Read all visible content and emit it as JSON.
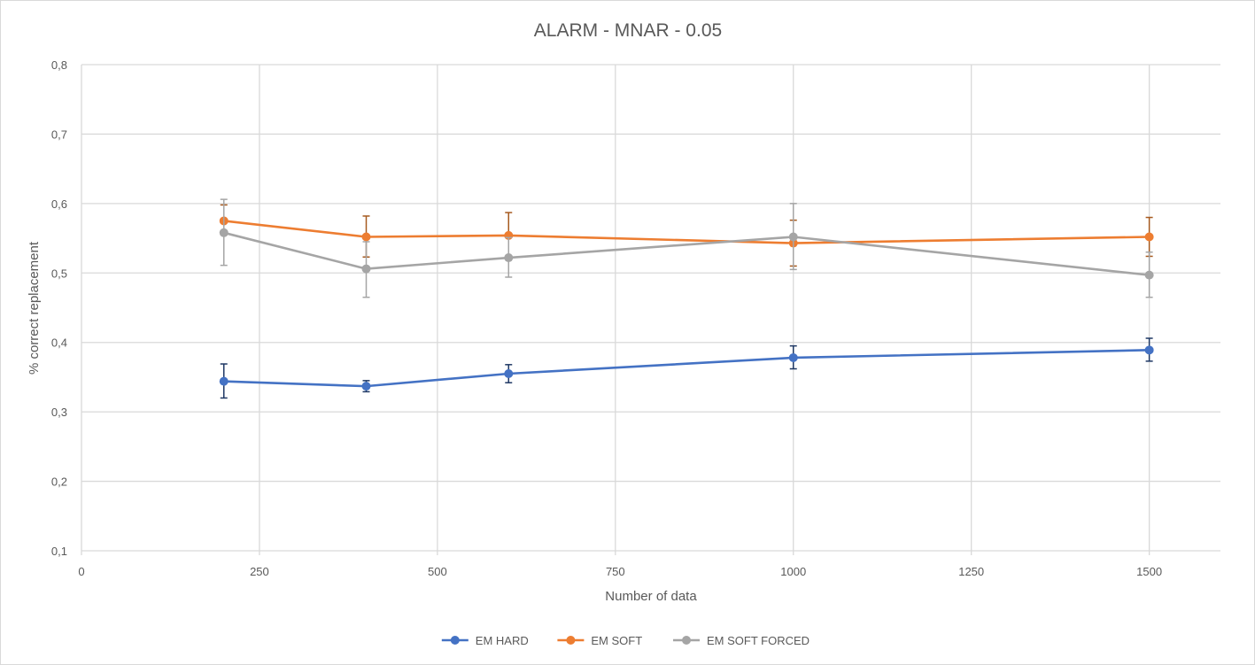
{
  "chart_data": {
    "type": "line",
    "title": "ALARM - MNAR - 0.05",
    "xlabel": "Number of data",
    "ylabel": "% correct replacement",
    "xlim": [
      0,
      1600
    ],
    "ylim": [
      0.1,
      0.8
    ],
    "xticks": [
      0,
      250,
      500,
      750,
      1000,
      1250,
      1500
    ],
    "xtick_labels": [
      "0",
      "250",
      "500",
      "750",
      "1000",
      "1250",
      "1500"
    ],
    "yticks": [
      0.1,
      0.2,
      0.3,
      0.4,
      0.5,
      0.6,
      0.7,
      0.8
    ],
    "ytick_labels": [
      "0,1",
      "0,2",
      "0,3",
      "0,4",
      "0,5",
      "0,6",
      "0,7",
      "0,8"
    ],
    "grid": true,
    "legend_position": "bottom",
    "x": [
      200,
      400,
      600,
      1000,
      1500
    ],
    "series": [
      {
        "name": "EM HARD",
        "color": "#4472c4",
        "error_color": "#1f3864",
        "values": [
          0.344,
          0.337,
          0.355,
          0.378,
          0.389
        ],
        "err_low": [
          0.32,
          0.329,
          0.342,
          0.362,
          0.373
        ],
        "err_high": [
          0.369,
          0.345,
          0.368,
          0.395,
          0.406
        ]
      },
      {
        "name": "EM SOFT",
        "color": "#ed7d31",
        "error_color": "#a65a1f",
        "values": [
          0.575,
          0.552,
          0.554,
          0.543,
          0.552
        ],
        "err_low": [
          0.555,
          0.523,
          0.523,
          0.51,
          0.524
        ],
        "err_high": [
          0.598,
          0.582,
          0.587,
          0.576,
          0.58
        ]
      },
      {
        "name": "EM SOFT FORCED",
        "color": "#a5a5a5",
        "error_color": "#a5a5a5",
        "values": [
          0.558,
          0.506,
          0.522,
          0.552,
          0.497
        ],
        "err_low": [
          0.511,
          0.465,
          0.494,
          0.505,
          0.465
        ],
        "err_high": [
          0.606,
          0.545,
          0.551,
          0.6,
          0.53
        ]
      }
    ]
  }
}
